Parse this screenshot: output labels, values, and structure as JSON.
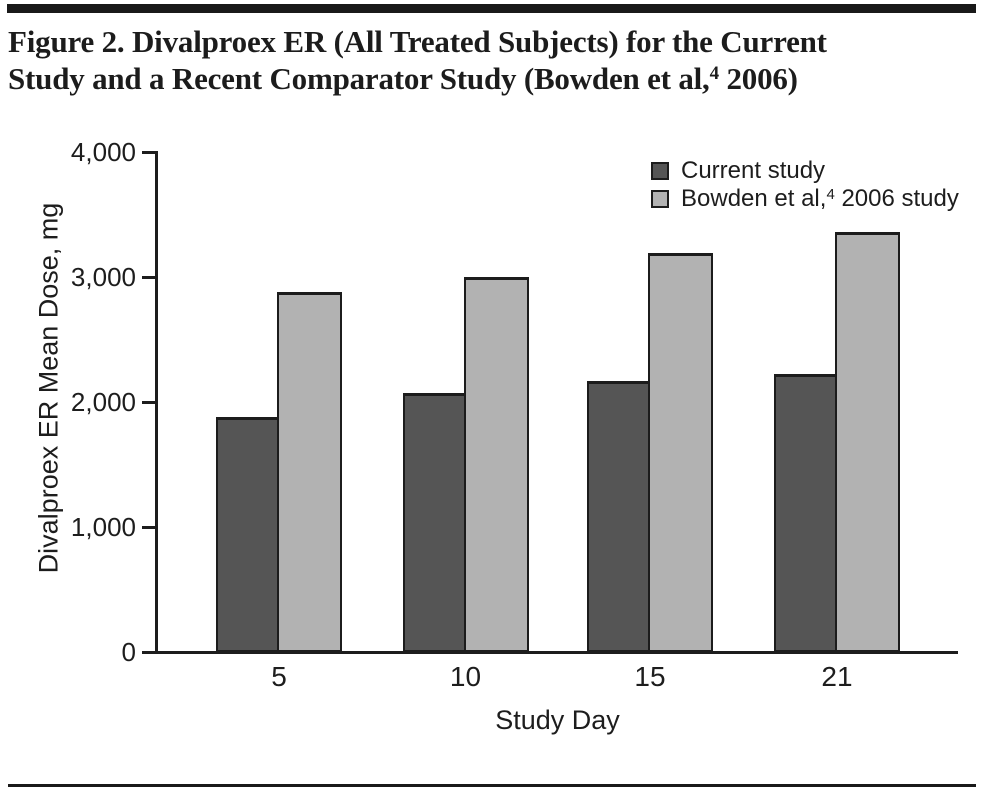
{
  "figure": {
    "title_line1": "Figure 2. Divalproex ER (All Treated Subjects) for the Current",
    "title_line2_pre": "Study and a Recent Comparator Study (Bowden et al,",
    "title_line2_sup": "4",
    "title_line2_post": " 2006)"
  },
  "legend": {
    "items": [
      {
        "pre": "Current study",
        "sup": "",
        "post": "",
        "swatch": "#555555"
      },
      {
        "pre": "Bowden et al,",
        "sup": "4",
        "post": " 2006 study",
        "swatch": "#b2b2b2"
      }
    ]
  },
  "chart_data": {
    "type": "bar",
    "title": "Figure 2. Divalproex ER (All Treated Subjects) for the Current Study and a Recent Comparator Study (Bowden et al, 2006)",
    "categories": [
      "5",
      "10",
      "15",
      "21"
    ],
    "series": [
      {
        "name": "Current study",
        "values": [
          1880,
          2070,
          2170,
          2220
        ],
        "color": "#555555"
      },
      {
        "name": "Bowden et al, 2006 study",
        "values": [
          2880,
          3000,
          3190,
          3360
        ],
        "color": "#b2b2b2"
      }
    ],
    "xlabel": "Study Day",
    "ylabel": "Divalproex ER Mean Dose, mg",
    "ylim": [
      0,
      4000
    ],
    "y_ticks": [
      "0",
      "1,000",
      "2,000",
      "3,000",
      "4,000"
    ],
    "y_tick_step": 1000,
    "grid": false,
    "legend_position": "top-right-inside",
    "bar_border_color": "#1c1c1c"
  },
  "colors": {
    "axis": "#1d1d1d",
    "text": "#1d1d1d",
    "rule": "#191919",
    "background": "#ffffff"
  }
}
